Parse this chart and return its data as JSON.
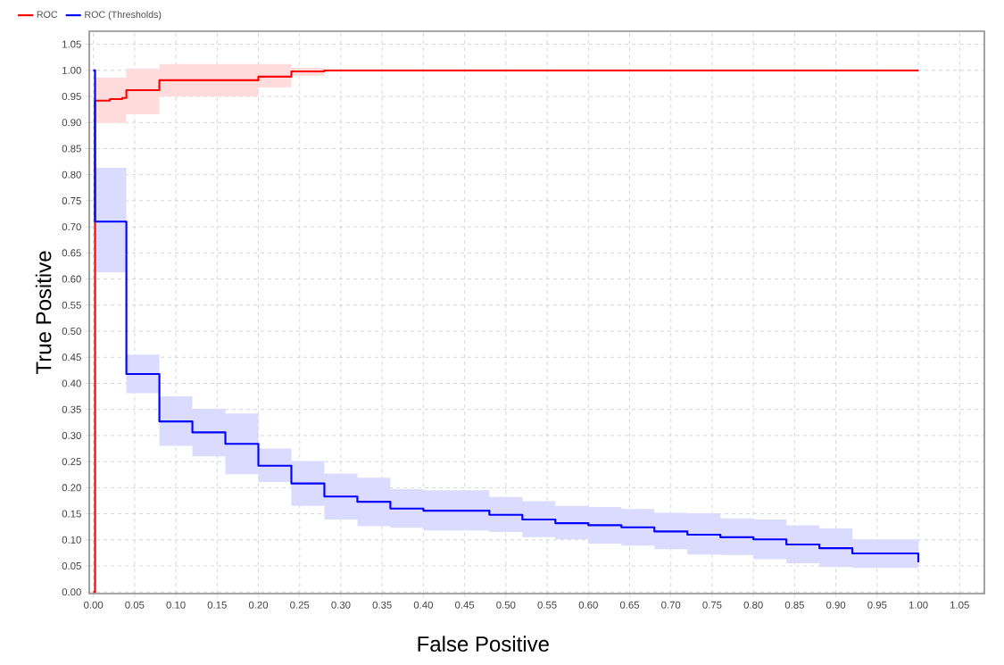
{
  "chart_data": {
    "type": "step",
    "xlabel": "False Positive",
    "ylabel": "True Positive",
    "legend": "top left",
    "grid": true,
    "xlim": [
      -0.005,
      1.08
    ],
    "ylim": [
      -0.003,
      1.075
    ],
    "xticks": [
      {
        "value": 0,
        "label": "0.00"
      },
      {
        "value": 0.05,
        "label": "0.05"
      },
      {
        "value": 0.1,
        "label": "0.10"
      },
      {
        "value": 0.15,
        "label": "0.15"
      },
      {
        "value": 0.2,
        "label": "0.20"
      },
      {
        "value": 0.25,
        "label": "0.25"
      },
      {
        "value": 0.3,
        "label": "0.30"
      },
      {
        "value": 0.35,
        "label": "0.35"
      },
      {
        "value": 0.4,
        "label": "0.40"
      },
      {
        "value": 0.45,
        "label": "0.45"
      },
      {
        "value": 0.5,
        "label": "0.50"
      },
      {
        "value": 0.55,
        "label": "0.55"
      },
      {
        "value": 0.6,
        "label": "0.60"
      },
      {
        "value": 0.65,
        "label": "0.65"
      },
      {
        "value": 0.7,
        "label": "0.70"
      },
      {
        "value": 0.75,
        "label": "0.75"
      },
      {
        "value": 0.8,
        "label": "0.80"
      },
      {
        "value": 0.85,
        "label": "0.85"
      },
      {
        "value": 0.9,
        "label": "0.90"
      },
      {
        "value": 0.95,
        "label": "0.95"
      },
      {
        "value": 1,
        "label": "1.00"
      },
      {
        "value": 1.05,
        "label": "1.05"
      }
    ],
    "yticks": [
      {
        "value": 0,
        "label": "0.00"
      },
      {
        "value": 0.05,
        "label": "0.05"
      },
      {
        "value": 0.1,
        "label": "0.10"
      },
      {
        "value": 0.15,
        "label": "0.15"
      },
      {
        "value": 0.2,
        "label": "0.20"
      },
      {
        "value": 0.25,
        "label": "0.25"
      },
      {
        "value": 0.3,
        "label": "0.30"
      },
      {
        "value": 0.35,
        "label": "0.35"
      },
      {
        "value": 0.4,
        "label": "0.40"
      },
      {
        "value": 0.45,
        "label": "0.45"
      },
      {
        "value": 0.5,
        "label": "0.50"
      },
      {
        "value": 0.55,
        "label": "0.55"
      },
      {
        "value": 0.6,
        "label": "0.60"
      },
      {
        "value": 0.65,
        "label": "0.65"
      },
      {
        "value": 0.7,
        "label": "0.70"
      },
      {
        "value": 0.75,
        "label": "0.75"
      },
      {
        "value": 0.8,
        "label": "0.80"
      },
      {
        "value": 0.85,
        "label": "0.85"
      },
      {
        "value": 0.9,
        "label": "0.90"
      },
      {
        "value": 0.95,
        "label": "0.95"
      },
      {
        "value": 1,
        "label": "1.00"
      },
      {
        "value": 1.05,
        "label": "1.05"
      }
    ],
    "series": [
      {
        "name": "ROC",
        "color": "#ff0000",
        "x": [
          0,
          0.002,
          0.02,
          0.035,
          0.04,
          0.08,
          0.2,
          0.24,
          0.28,
          1.0
        ],
        "values": [
          0,
          0.942,
          0.945,
          0.947,
          0.962,
          0.981,
          0.988,
          0.998,
          1.0,
          1.0
        ],
        "lower": [
          null,
          0.899,
          0.899,
          0.899,
          0.916,
          0.95,
          0.967,
          0.99,
          1.0,
          1.0
        ],
        "upper": [
          null,
          0.986,
          0.986,
          0.986,
          1.003,
          1.012,
          1.012,
          1.005,
          1.0,
          1.0
        ]
      },
      {
        "name": "ROC (Thresholds)",
        "color": "#0000ff",
        "x": [
          0,
          0.002,
          0.04,
          0.08,
          0.12,
          0.16,
          0.2,
          0.24,
          0.28,
          0.32,
          0.36,
          0.4,
          0.48,
          0.52,
          0.56,
          0.6,
          0.64,
          0.68,
          0.72,
          0.76,
          0.8,
          0.84,
          0.88,
          0.92,
          1.0
        ],
        "values": [
          1.0,
          0.71,
          0.418,
          0.327,
          0.306,
          0.284,
          0.242,
          0.208,
          0.183,
          0.173,
          0.16,
          0.156,
          0.148,
          0.139,
          0.132,
          0.128,
          0.124,
          0.116,
          0.11,
          0.105,
          0.101,
          0.091,
          0.084,
          0.074,
          0.057
        ],
        "upper": [
          null,
          0.813,
          0.455,
          0.375,
          0.351,
          0.342,
          0.275,
          0.251,
          0.227,
          0.219,
          0.197,
          0.195,
          0.182,
          0.174,
          0.165,
          0.163,
          0.159,
          0.152,
          0.151,
          0.141,
          0.139,
          0.128,
          0.122,
          0.101,
          0.101
        ],
        "lower": [
          null,
          0.613,
          0.381,
          0.28,
          0.26,
          0.226,
          0.211,
          0.165,
          0.139,
          0.126,
          0.123,
          0.118,
          0.115,
          0.105,
          0.101,
          0.093,
          0.089,
          0.082,
          0.072,
          0.071,
          0.063,
          0.055,
          0.048,
          0.046,
          0.046
        ]
      }
    ]
  }
}
